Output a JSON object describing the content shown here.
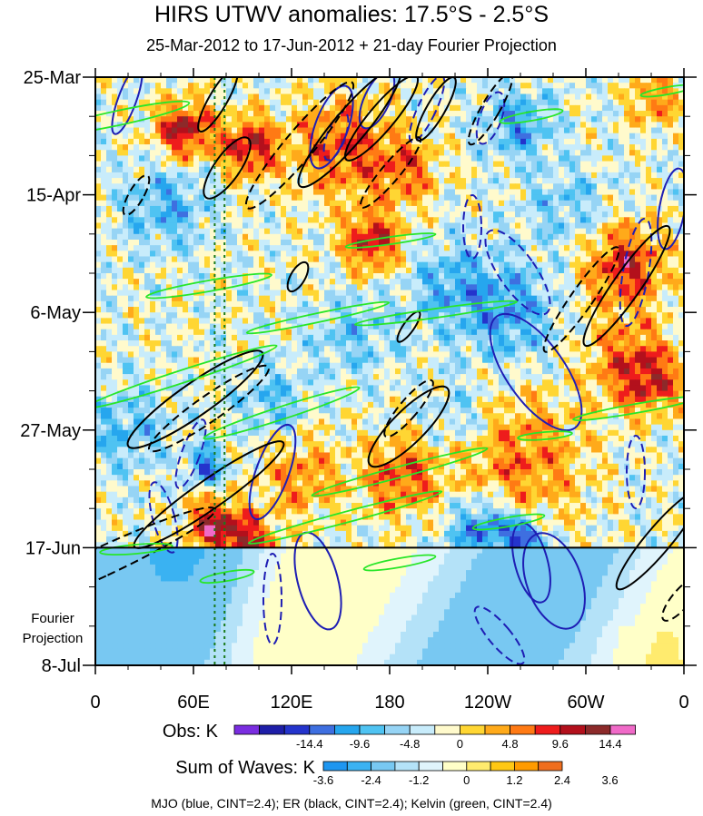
{
  "chart_data": {
    "type": "heatmap",
    "title": "HIRS UTWV anomalies: 17.5°S - 2.5°S",
    "subtitle": "25-Mar-2012 to 17-Jun-2012 + 21-day Fourier Projection",
    "x_ticks": [
      "0",
      "60E",
      "120E",
      "180",
      "120W",
      "60W",
      "0"
    ],
    "x_range_deg": [
      0,
      360
    ],
    "y_ticks": [
      "25-Mar",
      "15-Apr",
      "6-May",
      "27-May",
      "17-Jun",
      "8-Jul"
    ],
    "y_range_days": [
      0,
      105
    ],
    "projection_start_day": 84,
    "projection_label": [
      "Fourier",
      "Projection"
    ],
    "obs_colorbar": {
      "label": "Obs: K",
      "tick_labels": [
        "-14.4",
        "-9.6",
        "-4.8",
        "0",
        "4.8",
        "9.6",
        "14.4"
      ],
      "colors": [
        "#7a2de0",
        "#1e1ea8",
        "#2434cc",
        "#3e6fe0",
        "#26a6ee",
        "#4fc3f2",
        "#96d4f5",
        "#c8ecfb",
        "#fffacc",
        "#ffd633",
        "#ffaa1a",
        "#ff7a14",
        "#ee1c1c",
        "#b3101c",
        "#8c2a2a",
        "#f06ac8"
      ]
    },
    "waves_colorbar": {
      "label": "Sum of Waves: K",
      "tick_labels": [
        "-3.6",
        "-2.4",
        "-1.2",
        "0",
        "1.2",
        "2.4",
        "3.6"
      ],
      "colors": [
        "#1e96f0",
        "#3ab2f2",
        "#78c8f2",
        "#b4e2f8",
        "#e0f4fc",
        "#ffffc8",
        "#ffeb6e",
        "#ffc814",
        "#ff9b00",
        "#f06e1e"
      ]
    },
    "reference_lines_lon": [
      73,
      79
    ],
    "caption": "MJO (blue, CINT=2.4); ER (black, CINT=2.4); Kelvin (green, CINT=2.4)",
    "contour_series": [
      {
        "name": "MJO",
        "color": "#1e1eb4"
      },
      {
        "name": "ER",
        "color": "#000000"
      },
      {
        "name": "Kelvin",
        "color": "#28e628"
      }
    ]
  }
}
